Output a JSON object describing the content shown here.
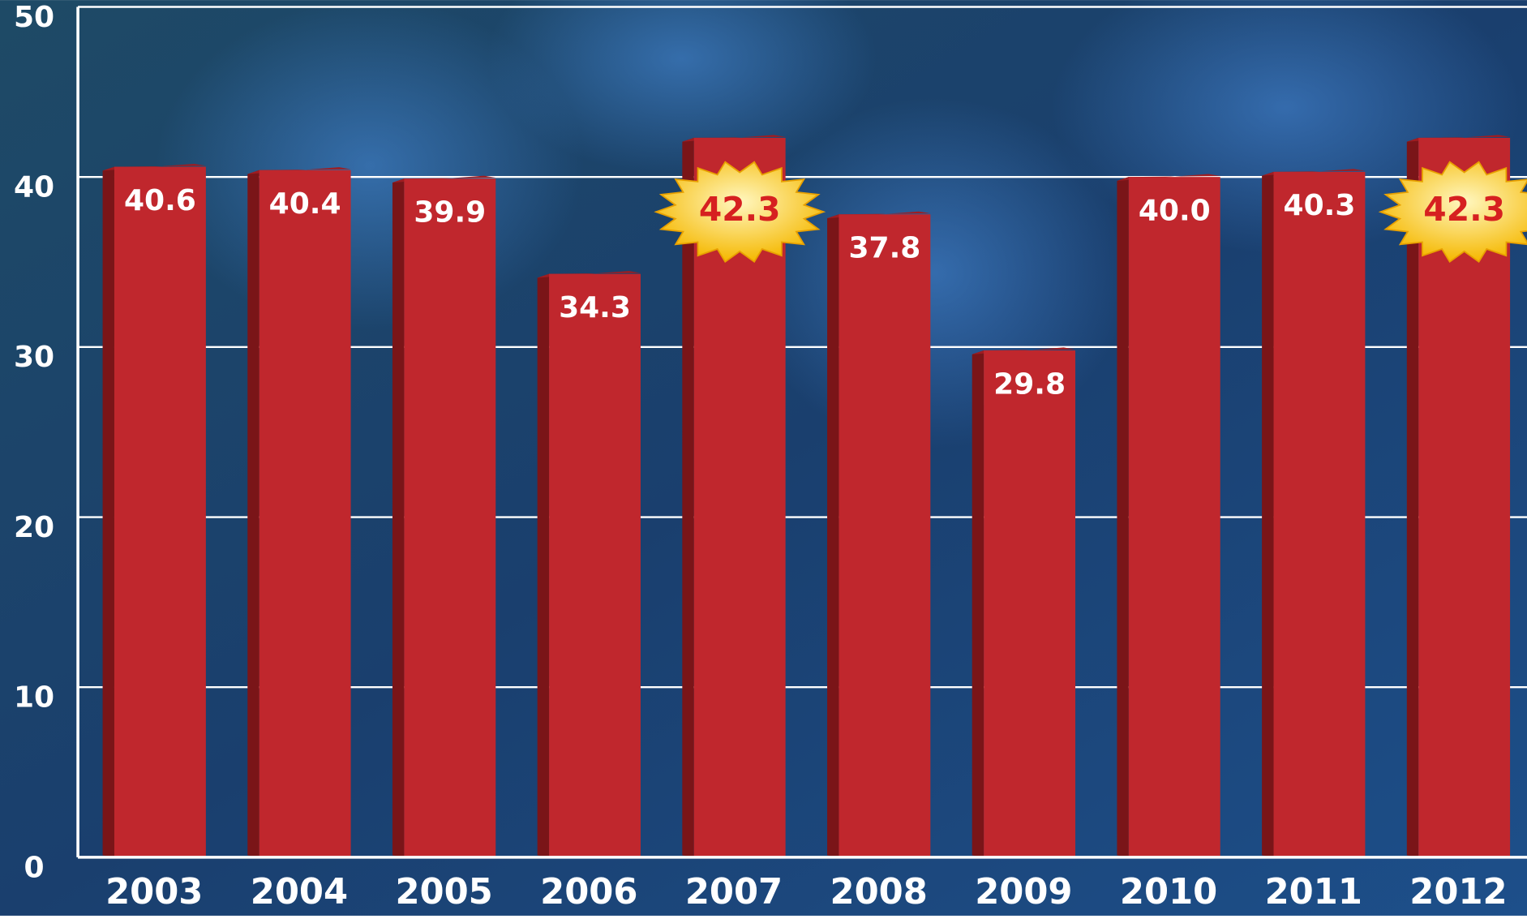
{
  "chart_data": {
    "type": "bar",
    "categories": [
      "2003",
      "2004",
      "2005",
      "2006",
      "2007",
      "2008",
      "2009",
      "2010",
      "2011",
      "2012"
    ],
    "values": [
      40.6,
      40.4,
      39.9,
      34.3,
      42.3,
      37.8,
      29.8,
      40.0,
      40.3,
      42.3
    ],
    "value_labels": [
      "40.6",
      "40.4",
      "39.9",
      "34.3",
      "42.3",
      "37.8",
      "29.8",
      "40.0",
      "40.3",
      "42.3"
    ],
    "color": "#c0272d",
    "ylim": [
      0,
      50
    ],
    "yticks": [
      0,
      10,
      20,
      30,
      40,
      50
    ],
    "grid": true
  }
}
